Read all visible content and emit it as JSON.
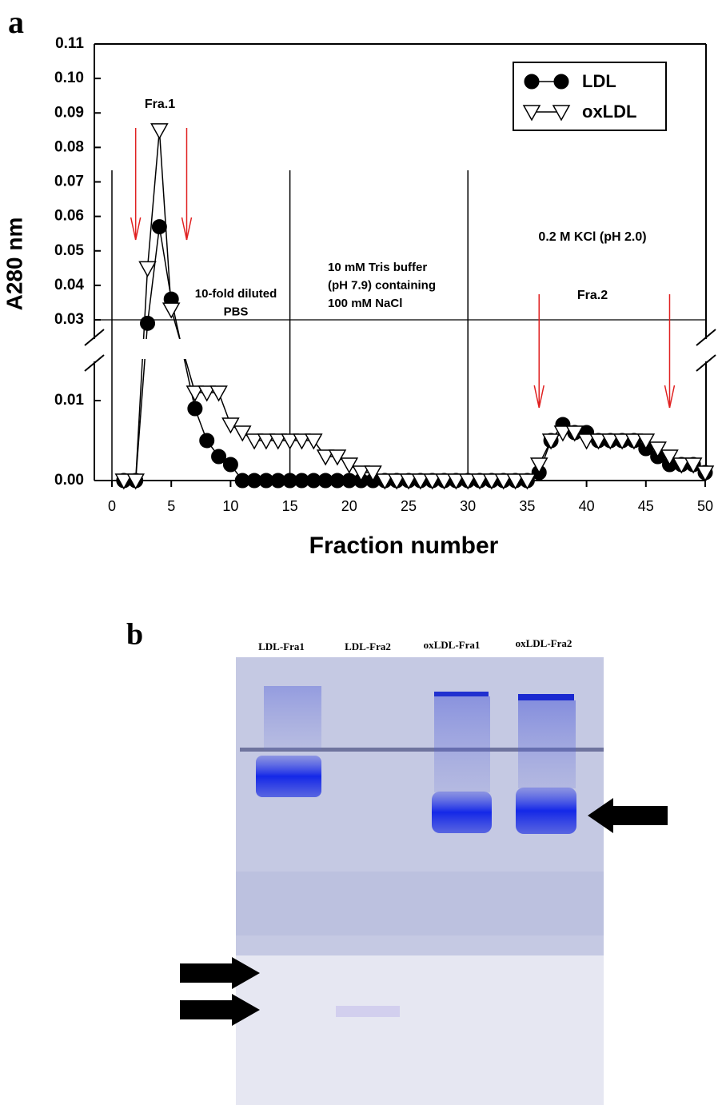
{
  "chart_data": {
    "type": "line",
    "panel_label": "a",
    "x_label": "Fraction number",
    "y_label": "A280 nm",
    "x": [
      1,
      2,
      3,
      4,
      5,
      7,
      8,
      9,
      10,
      11,
      12,
      13,
      14,
      15,
      16,
      17,
      18,
      19,
      20,
      21,
      22,
      23,
      24,
      25,
      26,
      27,
      28,
      29,
      30,
      31,
      32,
      33,
      34,
      35,
      36,
      37,
      38,
      39,
      40,
      41,
      42,
      43,
      44,
      45,
      46,
      47,
      48,
      49,
      50
    ],
    "series": [
      {
        "name": "LDL",
        "color": "#000000",
        "marker": "circle",
        "values": [
          0,
          0,
          0.029,
          0.057,
          0.036,
          0.009,
          0.005,
          0.003,
          0.002,
          0,
          0,
          0,
          0,
          0,
          0,
          0,
          0,
          0,
          0,
          0,
          0,
          0,
          0,
          0,
          0,
          0,
          0,
          0,
          0,
          0,
          0,
          0,
          0,
          0,
          0.001,
          0.005,
          0.007,
          0.006,
          0.006,
          0.005,
          0.005,
          0.005,
          0.005,
          0.004,
          0.003,
          0.002,
          0.002,
          0.002,
          0.001
        ]
      },
      {
        "name": "oxLDL",
        "color": "#000000",
        "marker": "triangle-down",
        "values": [
          0,
          0,
          0.045,
          0.085,
          0.033,
          0.011,
          0.011,
          0.011,
          0.007,
          0.006,
          0.005,
          0.005,
          0.005,
          0.005,
          0.005,
          0.005,
          0.003,
          0.003,
          0.002,
          0.001,
          0.001,
          0,
          0,
          0,
          0,
          0,
          0,
          0,
          0,
          0,
          0,
          0,
          0,
          0,
          0.002,
          0.005,
          0.006,
          0.006,
          0.005,
          0.005,
          0.005,
          0.005,
          0.005,
          0.005,
          0.004,
          0.003,
          0.002,
          0.002,
          0.001
        ]
      }
    ],
    "xlim": [
      0,
      50
    ],
    "xticks": [
      0,
      5,
      10,
      15,
      20,
      25,
      30,
      35,
      40,
      45,
      50
    ],
    "ylim": [
      0,
      0.11
    ],
    "y_break": [
      0.015,
      0.025
    ],
    "yticks": [
      {
        "value": 0,
        "label": "0.00"
      },
      0.01,
      0.03,
      0.04,
      0.05,
      0.06,
      0.07,
      0.08,
      0.09,
      {
        "value": 0.1,
        "label": "0.10"
      },
      0.11
    ],
    "dividers": [
      0,
      15,
      30
    ],
    "fraction_arrows": [
      2,
      6.3,
      36,
      47
    ],
    "arrow_color": "#e02020",
    "legend": "upper right",
    "annotations": [
      [
        "Fra.1"
      ],
      [
        "10-fold diluted",
        "PBS"
      ],
      [
        "10 mM Tris buffer",
        "(pH 7.9) containing",
        "100 mM NaCl"
      ],
      [
        "0.2 M KCl (pH 2.0)"
      ],
      [
        "Fra.2"
      ]
    ]
  },
  "gel": {
    "panel_label": "b",
    "lanes": [
      "LDL-Fra1",
      "LDL-Fra2",
      "oxLDL-Fra1",
      "oxLDL-Fra2"
    ]
  }
}
